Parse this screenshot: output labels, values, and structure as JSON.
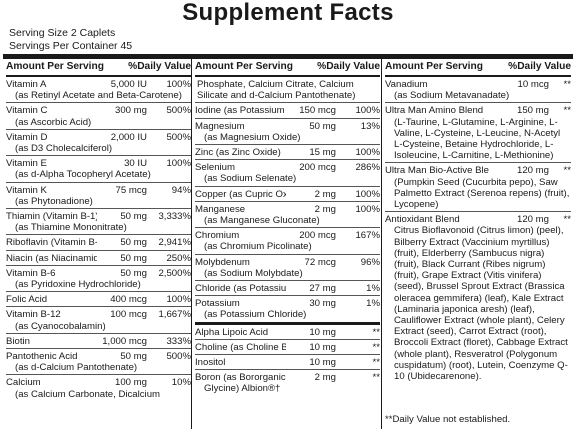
{
  "title": "Supplement Facts",
  "serving_size": "Serving Size 2 Caplets",
  "servings_per_container": "Servings Per Container 45",
  "columns": [
    {
      "header": {
        "left": "Amount Per Serving",
        "right": "%Daily Value"
      },
      "rows": [
        {
          "name": "Vitamin A",
          "amount": "5,000 IU",
          "dv": "100%",
          "sub": "(as Retinyl Acetate and Beta-Carotene)"
        },
        {
          "name": "Vitamin C",
          "amount": "300 mg",
          "dv": "500%",
          "sub": "(as Ascorbic Acid)"
        },
        {
          "name": "Vitamin D",
          "amount": "2,000 IU",
          "dv": "500%",
          "sub": "(as D3 Cholecalciferol)"
        },
        {
          "name": "Vitamin E",
          "amount": "30 IU",
          "dv": "100%",
          "sub": "(as d-Alpha Tocopheryl Acetate)"
        },
        {
          "name": "Vitamin K",
          "amount": "75 mcg",
          "dv": "94%",
          "sub": "(as Phytonadione)"
        },
        {
          "name": "Thiamin (Vitamin B-1)",
          "amount": "50 mg",
          "dv": "3,333%",
          "sub": "(as Thiamine Mononitrate)"
        },
        {
          "name": "Riboflavin (Vitamin B-2)",
          "amount": "50 mg",
          "dv": "2,941%"
        },
        {
          "name": "Niacin (as Niacinamide)",
          "amount": "50 mg",
          "dv": "250%"
        },
        {
          "name": "Vitamin B-6",
          "amount": "50 mg",
          "dv": "2,500%",
          "sub": "(as Pyridoxine Hydrochloride)"
        },
        {
          "name": "Folic Acid",
          "amount": "400 mcg",
          "dv": "100%"
        },
        {
          "name": "Vitamin B-12",
          "amount": "100 mcg",
          "dv": "1,667%",
          "sub": "(as Cyanocobalamin)"
        },
        {
          "name": "Biotin",
          "amount": "1,000 mcg",
          "dv": "333%"
        },
        {
          "name": "Pantothenic Acid",
          "amount": "50 mg",
          "dv": "500%",
          "sub": "(as d-Calcium Pantothenate)"
        },
        {
          "name": "Calcium",
          "amount": "100 mg",
          "dv": "10%",
          "sub": "(as Calcium Carbonate, Dicalcium"
        }
      ]
    },
    {
      "header": {
        "left": "Amount Per Serving",
        "right": "%Daily Value"
      },
      "rows": [
        {
          "text": "Phosphate, Calcium Citrate, Calcium Silicate and d-Calcium Pantothenate)"
        },
        {
          "name": "Iodine (as Potassium Iodide)",
          "amount": "150 mcg",
          "dv": "100%"
        },
        {
          "name": "Magnesium",
          "amount": "50 mg",
          "dv": "13%",
          "sub": "(as Magnesium Oxide)"
        },
        {
          "name": "Zinc (as Zinc Oxide)",
          "amount": "15 mg",
          "dv": "100%"
        },
        {
          "name": "Selenium",
          "amount": "200 mcg",
          "dv": "286%",
          "sub": "(as Sodium Selenate)"
        },
        {
          "name": "Copper (as Cupric Oxide)",
          "amount": "2 mg",
          "dv": "100%"
        },
        {
          "name": "Manganese",
          "amount": "2 mg",
          "dv": "100%",
          "sub": "(as Manganese Gluconate)"
        },
        {
          "name": "Chromium",
          "amount": "200 mcg",
          "dv": "167%",
          "sub": "(as Chromium Picolinate)"
        },
        {
          "name": "Molybdenum",
          "amount": "72 mcg",
          "dv": "96%",
          "sub": "(as Sodium Molybdate)"
        },
        {
          "name": "Chloride (as Potassium Chloride)",
          "amount": "27 mg",
          "dv": "1%"
        },
        {
          "name": "Potassium",
          "amount": "30 mg",
          "dv": "1%",
          "sub": "(as Potassium Chloride)"
        },
        {
          "name": "Alpha Lipoic Acid",
          "amount": "10 mg",
          "dv": "**"
        },
        {
          "name": "Choline (as Choline Bitartrate)",
          "amount": "10 mg",
          "dv": "**"
        },
        {
          "name": "Inositol",
          "amount": "10 mg",
          "dv": "**"
        },
        {
          "name": "Boron (as Bororganic",
          "amount": "2 mg",
          "dv": "**",
          "sub": "Glycine) Albion®†"
        }
      ]
    },
    {
      "header": {
        "left": "Amount Per Serving",
        "right": "%Daily Value"
      },
      "rows": [
        {
          "name": "Vanadium",
          "amount": "10 mcg",
          "dv": "**",
          "sub": "(as Sodium Metavanadate)"
        },
        {
          "name": "Ultra Man Amino Blend",
          "amount": "150 mg",
          "dv": "**",
          "sub": "(L-Taurine, L-Glutamine, L-Arginine, L-Valine, L-Cysteine, L-Leucine, N-Acetyl L-Cysteine, Betaine Hydrochloride, L-Isoleucine, L-Carnitine, L-Methionine)"
        },
        {
          "name": "Ultra Man Bio-Active Blend",
          "amount": "120 mg",
          "dv": "**",
          "sub": "(Pumpkin Seed (Cucurbita pepo), Saw Palmetto Extract (Serenoa repens) (fruit), Lycopene)"
        },
        {
          "name": "Antioxidant Blend",
          "amount": "120 mg",
          "dv": "**",
          "sub": "Citrus Bioflavonoid (Citrus limon) (peel), Bilberry Extract (Vaccinium myrtillus) (fruit), Elderberry (Sambucus nigra) (fruit), Black Currant (Ribes nigrum) (fruit), Grape Extract (Vitis vinifera) (seed), Brussel Sprout Extract (Brassica oleracea gemmifera) (leaf), Kale Extract (Laminaria japonica aresh) (leaf), Cauliflower Extract (whole plant), Celery Extract (seed), Carrot Extract (root), Broccoli Extract (floret), Cabbage Extract (whole plant), Resveratrol (Polygonum cuspidatum) (root), Lutein, Coenzyme Q-10 (Ubidecarenone)."
        }
      ],
      "footnote": "**Daily Value not established."
    }
  ]
}
